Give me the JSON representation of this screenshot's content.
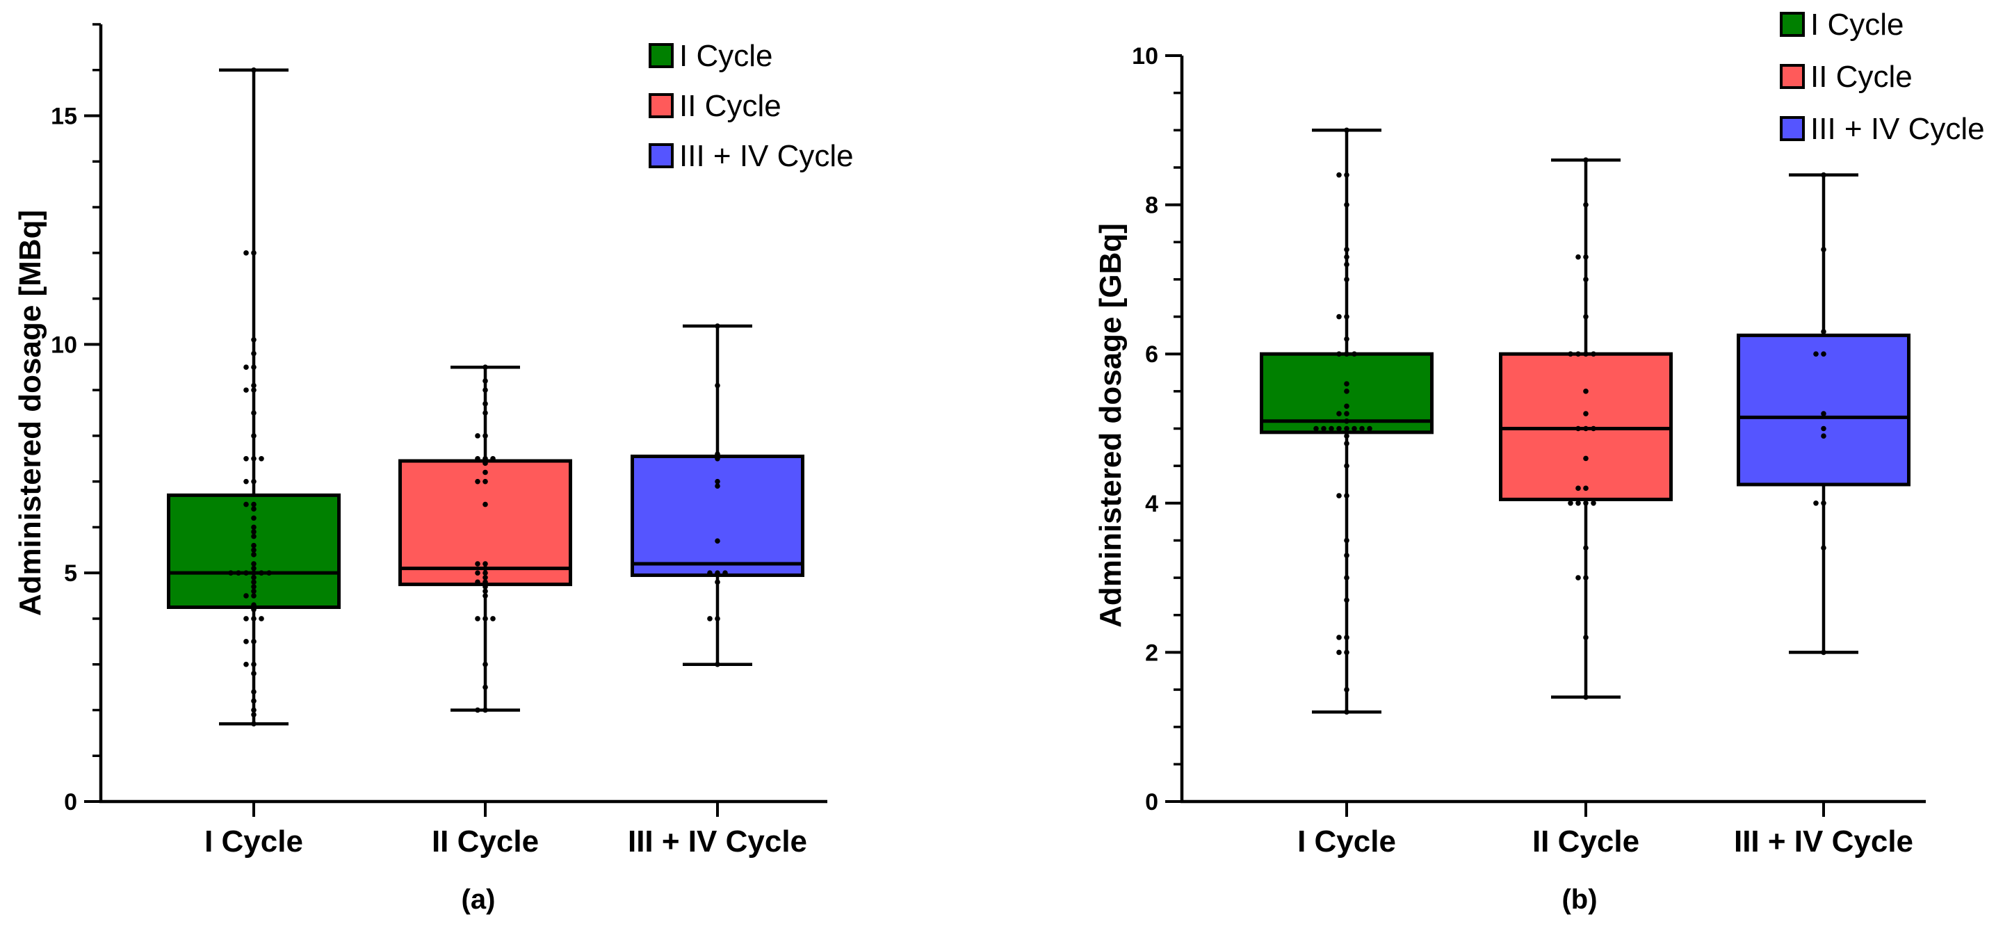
{
  "colors": {
    "I Cycle": "#008000",
    "II Cycle": "#ff5a5a",
    "III + IV Cycle": "#5555ff"
  },
  "chart_data": [
    {
      "type": "box",
      "panel": "(a)",
      "ylabel": "Administered dosage [MBq]",
      "xlabel": "",
      "ylim": [
        0,
        17
      ],
      "yticks": [
        0,
        5,
        10,
        15
      ],
      "categories": [
        "I Cycle",
        "II Cycle",
        "III + IV Cycle"
      ],
      "legend": [
        "I Cycle",
        "II Cycle",
        "III + IV Cycle"
      ],
      "legend_position": "top-right",
      "boxes": [
        {
          "name": "I Cycle",
          "min": 1.7,
          "q1": 4.25,
          "median": 5.0,
          "q3": 6.7,
          "max": 16.0,
          "points": [
            1.7,
            1.9,
            2.0,
            2.2,
            2.4,
            2.8,
            3.0,
            3.0,
            3.5,
            3.5,
            4.0,
            4.0,
            4.0,
            4.2,
            4.3,
            4.5,
            4.5,
            4.6,
            4.7,
            4.8,
            4.9,
            5.0,
            5.0,
            5.0,
            5.0,
            5.0,
            5.0,
            5.1,
            5.2,
            5.4,
            5.5,
            5.6,
            5.8,
            5.9,
            6.0,
            6.2,
            6.4,
            6.5,
            6.5,
            7.0,
            7.0,
            7.5,
            7.5,
            7.5,
            8.0,
            8.5,
            9.0,
            9.0,
            9.1,
            9.5,
            9.5,
            9.8,
            10.1,
            12.0,
            12.0,
            16.0
          ]
        },
        {
          "name": "II Cycle",
          "min": 2.0,
          "q1": 4.75,
          "median": 5.1,
          "q3": 7.45,
          "max": 9.5,
          "points": [
            2.0,
            2.0,
            2.5,
            3.0,
            4.0,
            4.0,
            4.0,
            4.5,
            4.6,
            4.7,
            4.8,
            4.8,
            4.9,
            5.0,
            5.0,
            5.1,
            5.2,
            5.2,
            6.5,
            7.0,
            7.0,
            7.2,
            7.4,
            7.5,
            7.5,
            7.5,
            8.0,
            8.0,
            8.5,
            8.7,
            9.0,
            9.2,
            9.5
          ]
        },
        {
          "name": "III + IV Cycle",
          "min": 3.0,
          "q1": 4.95,
          "median": 5.2,
          "q3": 7.55,
          "max": 10.4,
          "points": [
            3.0,
            4.0,
            4.0,
            4.8,
            5.0,
            5.0,
            5.0,
            5.7,
            6.9,
            7.0,
            7.5,
            7.6,
            9.1,
            10.4
          ]
        }
      ]
    },
    {
      "type": "box",
      "panel": "(b)",
      "ylabel": "Administered dosage [GBq]",
      "xlabel": "",
      "ylim": [
        0,
        10
      ],
      "yticks": [
        0,
        2,
        4,
        6,
        8,
        10
      ],
      "categories": [
        "I Cycle",
        "II Cycle",
        "III + IV Cycle"
      ],
      "legend": [
        "I Cycle",
        "II Cycle",
        "III + IV Cycle"
      ],
      "legend_position": "top-right",
      "boxes": [
        {
          "name": "I Cycle",
          "min": 1.2,
          "q1": 4.95,
          "median": 5.1,
          "q3": 6.0,
          "max": 9.0,
          "points": [
            1.2,
            1.5,
            2.0,
            2.0,
            2.2,
            2.2,
            2.7,
            3.0,
            3.3,
            3.5,
            4.1,
            4.1,
            4.5,
            4.8,
            4.9,
            5.0,
            5.0,
            5.0,
            5.0,
            5.0,
            5.0,
            5.0,
            5.0,
            5.1,
            5.2,
            5.2,
            5.3,
            5.5,
            5.6,
            6.0,
            6.0,
            6.0,
            6.2,
            6.5,
            6.5,
            7.0,
            7.2,
            7.3,
            7.4,
            8.0,
            8.4,
            8.4,
            9.0
          ]
        },
        {
          "name": "II Cycle",
          "min": 1.4,
          "q1": 4.05,
          "median": 5.0,
          "q3": 6.0,
          "max": 8.6,
          "points": [
            1.4,
            2.2,
            3.0,
            3.0,
            3.4,
            4.0,
            4.0,
            4.0,
            4.0,
            4.2,
            4.2,
            4.6,
            5.0,
            5.0,
            5.0,
            5.2,
            5.5,
            6.0,
            6.0,
            6.0,
            6.0,
            6.5,
            7.0,
            7.3,
            7.3,
            8.0,
            8.6
          ]
        },
        {
          "name": "III + IV Cycle",
          "min": 2.0,
          "q1": 4.25,
          "median": 5.15,
          "q3": 6.25,
          "max": 8.4,
          "points": [
            2.0,
            3.4,
            4.0,
            4.0,
            4.9,
            5.0,
            5.2,
            6.0,
            6.0,
            6.3,
            7.4,
            8.4
          ]
        }
      ]
    }
  ]
}
